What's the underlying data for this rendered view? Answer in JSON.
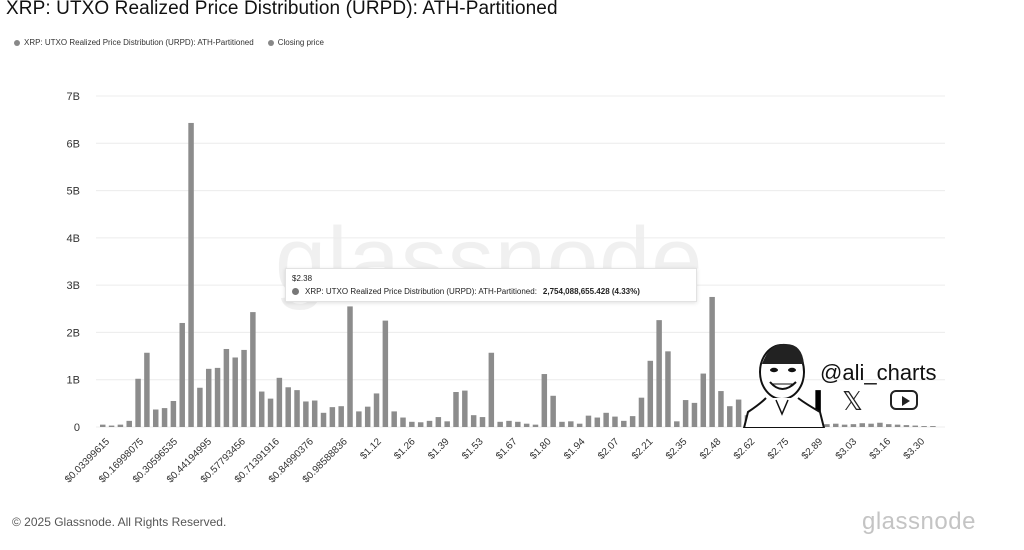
{
  "title": "XRP: UTXO Realized Price Distribution (URPD): ATH-Partitioned",
  "legend": {
    "series_label": "XRP: UTXO Realized Price Distribution (URPD): ATH-Partitioned",
    "closing_label": "Closing price"
  },
  "watermark": "glassnode",
  "tooltip": {
    "date": "$2.38",
    "label": "XRP: UTXO Realized Price Distribution (URPD): ATH-Partitioned:",
    "value": "2,754,088,655.428 (4.33%)"
  },
  "branding": {
    "handle": "@ali_charts",
    "x_glyph": "𝕏"
  },
  "footer": {
    "copyright": "© 2025 Glassnode. All Rights Reserved.",
    "logo": "glassnode"
  },
  "colors": {
    "bar": "#8c8c8c",
    "highlight": "#000000",
    "grid": "#ececec"
  },
  "chart_data": {
    "type": "bar",
    "title": "XRP: UTXO Realized Price Distribution (URPD): ATH-Partitioned",
    "ylim": [
      0,
      7000000000
    ],
    "yticks": [
      0,
      1000000000,
      2000000000,
      3000000000,
      4000000000,
      5000000000,
      6000000000,
      7000000000
    ],
    "ytick_labels": [
      "0",
      "1B",
      "2B",
      "3B",
      "4B",
      "5B",
      "6B",
      "7B"
    ],
    "xtick_labels": [
      "$0.03399615",
      "$0.16998075",
      "$0.30596535",
      "$0.44194995",
      "$0.57793456",
      "$0.71391916",
      "$0.84990376",
      "$0.98588836",
      "$1.12",
      "$1.26",
      "$1.39",
      "$1.53",
      "$1.67",
      "$1.80",
      "$1.94",
      "$2.07",
      "$2.21",
      "$2.35",
      "$2.48",
      "$2.62",
      "$2.75",
      "$2.89",
      "$3.03",
      "$3.16",
      "$3.30"
    ],
    "highlight_index": 81,
    "grid": true,
    "values": [
      0.05,
      0.03,
      0.05,
      0.13,
      1.02,
      1.57,
      0.37,
      0.4,
      0.55,
      2.2,
      6.43,
      0.83,
      1.23,
      1.25,
      1.65,
      1.47,
      1.63,
      2.43,
      0.75,
      0.6,
      1.04,
      0.84,
      0.78,
      0.54,
      0.56,
      0.3,
      0.42,
      0.44,
      2.55,
      0.33,
      0.43,
      0.71,
      2.25,
      0.33,
      0.2,
      0.11,
      0.1,
      0.13,
      0.21,
      0.12,
      0.74,
      0.77,
      0.25,
      0.21,
      1.57,
      0.11,
      0.13,
      0.11,
      0.07,
      0.05,
      1.12,
      0.66,
      0.11,
      0.12,
      0.07,
      0.24,
      0.2,
      0.3,
      0.22,
      0.13,
      0.23,
      0.62,
      1.4,
      2.26,
      1.6,
      0.12,
      0.57,
      0.51,
      1.13,
      2.75,
      0.76,
      0.44,
      0.58,
      0.25,
      0.08,
      0.1,
      0.09,
      0.08,
      0.06,
      0.05,
      0.07,
      0.78,
      0.06,
      0.07,
      0.05,
      0.06,
      0.08,
      0.07,
      0.09,
      0.06,
      0.05,
      0.04,
      0.03,
      0.02,
      0.02
    ],
    "value_unit": "billions"
  }
}
